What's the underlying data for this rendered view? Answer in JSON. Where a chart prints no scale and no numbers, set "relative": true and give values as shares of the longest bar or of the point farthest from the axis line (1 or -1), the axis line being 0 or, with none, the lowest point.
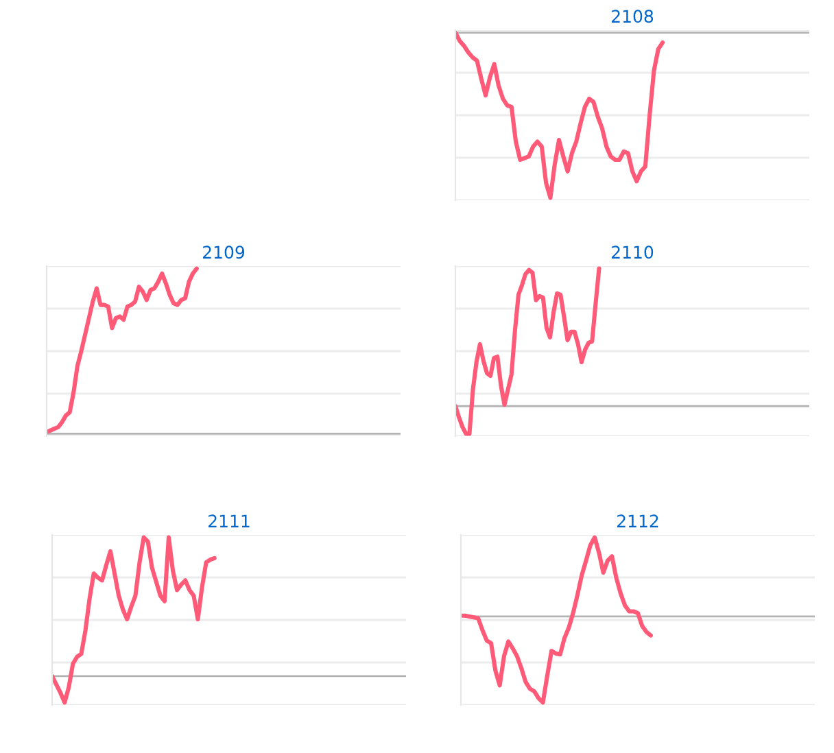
{
  "chart_data": [
    {
      "type": "line",
      "title": "2108",
      "relative": true,
      "grid": "y",
      "tick_labels": false,
      "line_style": "solid",
      "marker": "none",
      "categories": [
        null,
        null,
        null,
        null,
        null,
        null,
        null,
        null,
        null,
        null,
        null,
        null,
        null,
        null,
        null,
        null,
        null,
        null,
        null,
        null,
        null,
        null,
        null,
        null,
        null,
        null,
        null,
        null,
        null,
        null,
        null,
        null,
        null,
        null,
        null,
        null,
        null,
        null,
        null,
        null,
        null,
        null,
        null,
        null,
        null,
        null,
        null,
        null,
        null,
        null,
        null,
        null,
        null,
        null,
        null,
        null,
        null,
        null,
        null,
        null,
        null,
        null,
        null,
        null,
        null,
        null,
        null,
        null,
        null,
        null,
        null,
        null,
        null,
        null,
        null,
        null,
        null,
        null,
        null,
        null,
        null,
        null,
        null
      ],
      "series": [
        {
          "color": "#ff5a78",
          "values": [
            0,
            -0.05,
            -0.08,
            -0.12,
            -0.15,
            -0.17,
            -0.28,
            -0.38,
            -0.27,
            -0.19,
            -0.32,
            -0.4,
            -0.44,
            -0.45,
            -0.66,
            -0.77,
            -0.76,
            -0.75,
            -0.69,
            -0.66,
            -0.69,
            -0.91,
            -1,
            -0.8,
            -0.65,
            -0.75,
            -0.84,
            -0.73,
            -0.66,
            -0.55,
            -0.45,
            -0.4,
            -0.42,
            -0.51,
            -0.58,
            -0.69,
            -0.75,
            -0.77,
            -0.77,
            -0.72,
            -0.73,
            -0.84,
            -0.9,
            -0.84,
            -0.81,
            -0.5,
            -0.23,
            -0.1,
            -0.06,
            null,
            null,
            null,
            null,
            null,
            null,
            null,
            null,
            null,
            null,
            null,
            null,
            null,
            null,
            null,
            null,
            null,
            null,
            null,
            null,
            null,
            null,
            null,
            null,
            null,
            null,
            null,
            null,
            null,
            null,
            null,
            null,
            null,
            null
          ]
        }
      ]
    },
    {
      "type": "line",
      "title": "2109",
      "relative": true,
      "grid": "y",
      "tick_labels": false,
      "line_style": "solid",
      "marker": "none",
      "categories": [
        null,
        null,
        null,
        null,
        null,
        null,
        null,
        null,
        null,
        null,
        null,
        null,
        null,
        null,
        null,
        null,
        null,
        null,
        null,
        null,
        null,
        null,
        null,
        null,
        null,
        null,
        null,
        null,
        null,
        null,
        null,
        null,
        null,
        null,
        null,
        null,
        null,
        null,
        null,
        null,
        null,
        null,
        null,
        null,
        null,
        null,
        null,
        null,
        null,
        null,
        null,
        null,
        null,
        null,
        null,
        null,
        null,
        null,
        null,
        null,
        null,
        null,
        null,
        null,
        null,
        null,
        null,
        null,
        null,
        null,
        null,
        null,
        null,
        null,
        null,
        null,
        null,
        null,
        null,
        null,
        null,
        null,
        null,
        null,
        null,
        null,
        null,
        null,
        null,
        null,
        null,
        null,
        null
      ],
      "series": [
        {
          "color": "#ff5a78",
          "values": [
            0.01,
            0.02,
            0.03,
            0.04,
            0.07,
            0.11,
            0.13,
            0.25,
            0.41,
            0.5,
            0.6,
            0.7,
            0.8,
            0.88,
            0.78,
            0.78,
            0.77,
            0.64,
            0.7,
            0.71,
            0.69,
            0.77,
            0.78,
            0.8,
            0.89,
            0.86,
            0.81,
            0.87,
            0.88,
            0.92,
            0.97,
            0.91,
            0.84,
            0.79,
            0.78,
            0.81,
            0.82,
            0.92,
            0.97,
            1,
            null,
            null,
            null,
            null,
            null,
            null,
            null,
            null,
            null,
            null,
            null,
            null,
            null,
            null,
            null,
            null,
            null,
            null,
            null,
            null,
            null,
            null,
            null,
            null,
            null,
            null,
            null,
            null,
            null,
            null,
            null,
            null,
            null,
            null,
            null,
            null,
            null,
            null,
            null,
            null,
            null,
            null,
            null,
            null,
            null,
            null,
            null,
            null,
            null,
            null,
            null,
            null,
            null
          ]
        }
      ]
    },
    {
      "type": "line",
      "title": "2110",
      "relative": true,
      "grid": "y",
      "tick_labels": false,
      "line_style": "solid",
      "marker": "none",
      "categories": [
        null,
        null,
        null,
        null,
        null,
        null,
        null,
        null,
        null,
        null,
        null,
        null,
        null,
        null,
        null,
        null,
        null,
        null,
        null,
        null,
        null,
        null,
        null,
        null,
        null,
        null,
        null,
        null,
        null,
        null,
        null,
        null,
        null,
        null,
        null,
        null,
        null,
        null,
        null,
        null,
        null,
        null,
        null,
        null,
        null,
        null,
        null,
        null,
        null,
        null,
        null,
        null,
        null,
        null,
        null,
        null,
        null,
        null,
        null,
        null,
        null,
        null,
        null,
        null,
        null,
        null,
        null,
        null,
        null,
        null,
        null,
        null,
        null,
        null,
        null,
        null,
        null,
        null,
        null,
        null,
        null,
        null,
        null,
        null,
        null,
        null,
        null,
        null,
        null,
        null,
        null,
        null,
        null,
        null,
        null,
        null,
        null,
        null,
        null,
        null,
        null,
        null
      ],
      "series": [
        {
          "color": "#ff5a78",
          "values": [
            0,
            -0.08,
            -0.15,
            -0.2,
            -0.2,
            0.12,
            0.32,
            0.45,
            0.33,
            0.24,
            0.22,
            0.35,
            0.36,
            0.15,
            0.01,
            0.12,
            0.23,
            0.55,
            0.81,
            0.88,
            0.96,
            0.99,
            0.97,
            0.77,
            0.8,
            0.79,
            0.57,
            0.5,
            0.68,
            0.82,
            0.81,
            0.65,
            0.48,
            0.54,
            0.54,
            0.45,
            0.32,
            0.41,
            0.46,
            0.47,
            0.74,
            1,
            null,
            null,
            null,
            null,
            null,
            null,
            null,
            null,
            null,
            null,
            null,
            null,
            null,
            null,
            null,
            null,
            null,
            null,
            null,
            null,
            null,
            null,
            null,
            null,
            null,
            null,
            null,
            null,
            null,
            null,
            null,
            null,
            null,
            null,
            null,
            null,
            null,
            null,
            null,
            null,
            null,
            null,
            null,
            null,
            null,
            null,
            null,
            null,
            null,
            null,
            null,
            null,
            null,
            null,
            null,
            null,
            null,
            null,
            null,
            null
          ]
        }
      ]
    },
    {
      "type": "line",
      "title": "2111",
      "relative": true,
      "grid": "y",
      "tick_labels": false,
      "line_style": "solid",
      "marker": "none",
      "categories": [
        null,
        null,
        null,
        null,
        null,
        null,
        null,
        null,
        null,
        null,
        null,
        null,
        null,
        null,
        null,
        null,
        null,
        null,
        null,
        null,
        null,
        null,
        null,
        null,
        null,
        null,
        null,
        null,
        null,
        null,
        null,
        null,
        null,
        null,
        null,
        null,
        null,
        null,
        null,
        null,
        null,
        null,
        null,
        null,
        null,
        null,
        null,
        null,
        null,
        null,
        null,
        null,
        null,
        null,
        null,
        null,
        null,
        null,
        null,
        null,
        null,
        null,
        null,
        null,
        null,
        null,
        null,
        null,
        null,
        null,
        null,
        null,
        null,
        null,
        null,
        null,
        null,
        null,
        null,
        null,
        null,
        null,
        null,
        null,
        null,
        null
      ],
      "series": [
        {
          "color": "#ff5a78",
          "values": [
            0,
            -0.06,
            -0.12,
            -0.19,
            -0.08,
            0.09,
            0.14,
            0.16,
            0.33,
            0.56,
            0.74,
            0.71,
            0.69,
            0.8,
            0.9,
            0.74,
            0.58,
            0.48,
            0.41,
            0.5,
            0.58,
            0.82,
            1,
            0.97,
            0.78,
            0.68,
            0.58,
            0.54,
            1,
            0.76,
            0.62,
            0.66,
            0.69,
            0.62,
            0.58,
            0.41,
            0.64,
            0.82,
            0.84,
            0.85,
            null,
            null,
            null,
            null,
            null,
            null,
            null,
            null,
            null,
            null,
            null,
            null,
            null,
            null,
            null,
            null,
            null,
            null,
            null,
            null,
            null,
            null,
            null,
            null,
            null,
            null,
            null,
            null,
            null,
            null,
            null,
            null,
            null,
            null,
            null,
            null,
            null,
            null,
            null,
            null,
            null,
            null,
            null,
            null,
            null,
            null
          ]
        }
      ]
    },
    {
      "type": "line",
      "title": "2112",
      "relative": true,
      "grid": "y",
      "tick_labels": false,
      "line_style": "solid",
      "marker": "none",
      "categories": [
        null,
        null,
        null,
        null,
        null,
        null,
        null,
        null,
        null,
        null,
        null,
        null,
        null,
        null,
        null,
        null,
        null,
        null,
        null,
        null,
        null,
        null,
        null,
        null,
        null,
        null,
        null,
        null,
        null,
        null,
        null,
        null,
        null,
        null,
        null,
        null,
        null,
        null,
        null,
        null,
        null,
        null,
        null,
        null,
        null,
        null,
        null,
        null,
        null,
        null,
        null,
        null,
        null,
        null,
        null,
        null,
        null,
        null,
        null,
        null,
        null,
        null,
        null,
        null,
        null,
        null,
        null,
        null,
        null,
        null,
        null,
        null,
        null,
        null,
        null,
        null,
        null,
        null,
        null,
        null,
        null,
        null,
        null
      ],
      "series": [
        {
          "color": "#ff5a78",
          "values": [
            0.01,
            0.01,
            0,
            -0.01,
            -0.02,
            -0.16,
            -0.28,
            -0.31,
            -0.63,
            -0.8,
            -0.46,
            -0.29,
            -0.37,
            -0.46,
            -0.6,
            -0.76,
            -0.84,
            -0.87,
            -0.95,
            -1,
            -0.69,
            -0.4,
            -0.43,
            -0.44,
            -0.25,
            -0.13,
            0.04,
            0.25,
            0.48,
            0.65,
            0.83,
            0.92,
            0.74,
            0.51,
            0.65,
            0.7,
            0.45,
            0.27,
            0.13,
            0.06,
            0.06,
            0.04,
            -0.11,
            -0.18,
            -0.22,
            null,
            null,
            null,
            null,
            null,
            null,
            null,
            null,
            null,
            null,
            null,
            null,
            null,
            null,
            null,
            null,
            null,
            null,
            null,
            null,
            null,
            null,
            null,
            null,
            null,
            null,
            null,
            null,
            null,
            null,
            null,
            null,
            null,
            null,
            null,
            null,
            null,
            null
          ]
        }
      ]
    }
  ]
}
